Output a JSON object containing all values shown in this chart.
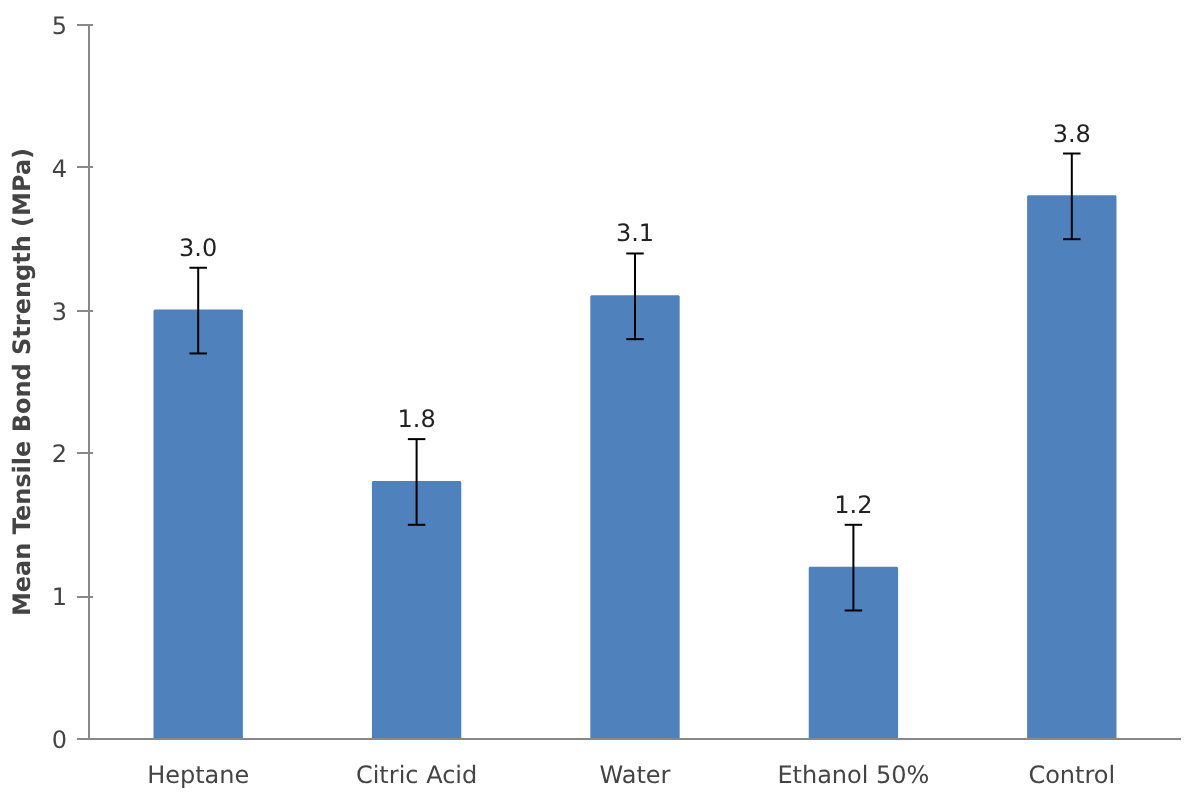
{
  "chart_data": {
    "type": "bar",
    "ylabel": "Mean Tensile Bond Strength (MPa)",
    "categories": [
      "Heptane",
      "Citric Acid",
      "Water",
      "Ethanol 50%",
      "Control"
    ],
    "values": [
      3.0,
      1.8,
      3.1,
      1.2,
      3.8
    ],
    "errors": [
      0.3,
      0.3,
      0.3,
      0.3,
      0.3
    ],
    "color": "#4f81bd",
    "value_labels": [
      "3.0",
      "1.8",
      "3.1",
      "1.2",
      "3.8"
    ],
    "ylim": [
      0,
      5
    ],
    "yticks": [
      0,
      1,
      2,
      3,
      4,
      5
    ],
    "grid": false
  }
}
